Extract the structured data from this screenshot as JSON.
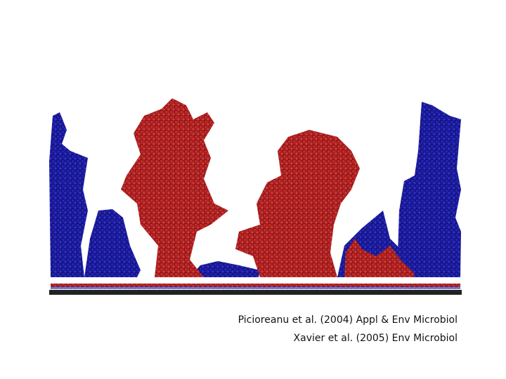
{
  "citations": [
    "Picioreanu et al. (2004) Appl & Env Microbiol",
    "Xavier et al. (2005) Env Microbiol"
  ]
}
